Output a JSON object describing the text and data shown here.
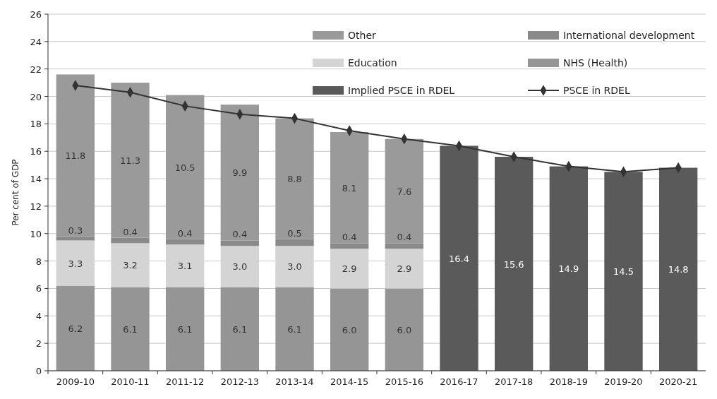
{
  "chart_data": {
    "type": "bar",
    "stacked": true,
    "ylabel": "Per cent of GDP",
    "categories": [
      "2009-10",
      "2010-11",
      "2011-12",
      "2012-13",
      "2013-14",
      "2014-15",
      "2015-16",
      "2016-17",
      "2017-18",
      "2018-19",
      "2019-20",
      "2020-21"
    ],
    "series": [
      {
        "name": "NHS (Health)",
        "color": "#959595",
        "values": [
          6.2,
          6.1,
          6.1,
          6.1,
          6.1,
          6.0,
          6.0,
          null,
          null,
          null,
          null,
          null
        ],
        "value_labels": [
          "6.2",
          "6.1",
          "6.1",
          "6.1",
          "6.1",
          "6.0",
          "6.0",
          null,
          null,
          null,
          null,
          null
        ]
      },
      {
        "name": "Education",
        "color": "#d4d4d4",
        "values": [
          3.3,
          3.2,
          3.1,
          3.0,
          3.0,
          2.9,
          2.9,
          null,
          null,
          null,
          null,
          null
        ],
        "value_labels": [
          "3.3",
          "3.2",
          "3.1",
          "3.0",
          "3.0",
          "2.9",
          "2.9",
          null,
          null,
          null,
          null,
          null
        ]
      },
      {
        "name": "International development",
        "color": "#8a8a8a",
        "values": [
          0.3,
          0.4,
          0.4,
          0.4,
          0.5,
          0.4,
          0.4,
          null,
          null,
          null,
          null,
          null
        ],
        "value_labels": [
          "0.3",
          "0.4",
          "0.4",
          "0.4",
          "0.5",
          "0.4",
          "0.4",
          null,
          null,
          null,
          null,
          null
        ]
      },
      {
        "name": "Other",
        "color": "#9a9a9a",
        "values": [
          11.8,
          11.3,
          10.5,
          9.9,
          8.8,
          8.1,
          7.6,
          null,
          null,
          null,
          null,
          null
        ],
        "value_labels": [
          "11.8",
          "11.3",
          "10.5",
          "9.9",
          "8.8",
          "8.1",
          "7.6",
          null,
          null,
          null,
          null,
          null
        ]
      },
      {
        "name": "Implied PSCE in RDEL",
        "color": "#5a5a5a",
        "values": [
          null,
          null,
          null,
          null,
          null,
          null,
          null,
          16.4,
          15.6,
          14.9,
          14.5,
          14.8
        ],
        "value_labels": [
          null,
          null,
          null,
          null,
          null,
          null,
          null,
          "16.4",
          "15.6",
          "14.9",
          "14.5",
          "14.8"
        ]
      },
      {
        "name": "PSCE in RDEL",
        "type": "line",
        "color": "#333333",
        "marker": "diamond",
        "values": [
          20.8,
          20.3,
          19.3,
          18.7,
          18.4,
          17.5,
          16.9,
          16.4,
          15.6,
          14.9,
          14.5,
          14.8
        ]
      }
    ],
    "ylim": [
      0,
      26
    ],
    "yticks": [
      0,
      2,
      4,
      6,
      8,
      10,
      12,
      14,
      16,
      18,
      20,
      22,
      24,
      26
    ],
    "grid": "y",
    "legend": "top right"
  }
}
